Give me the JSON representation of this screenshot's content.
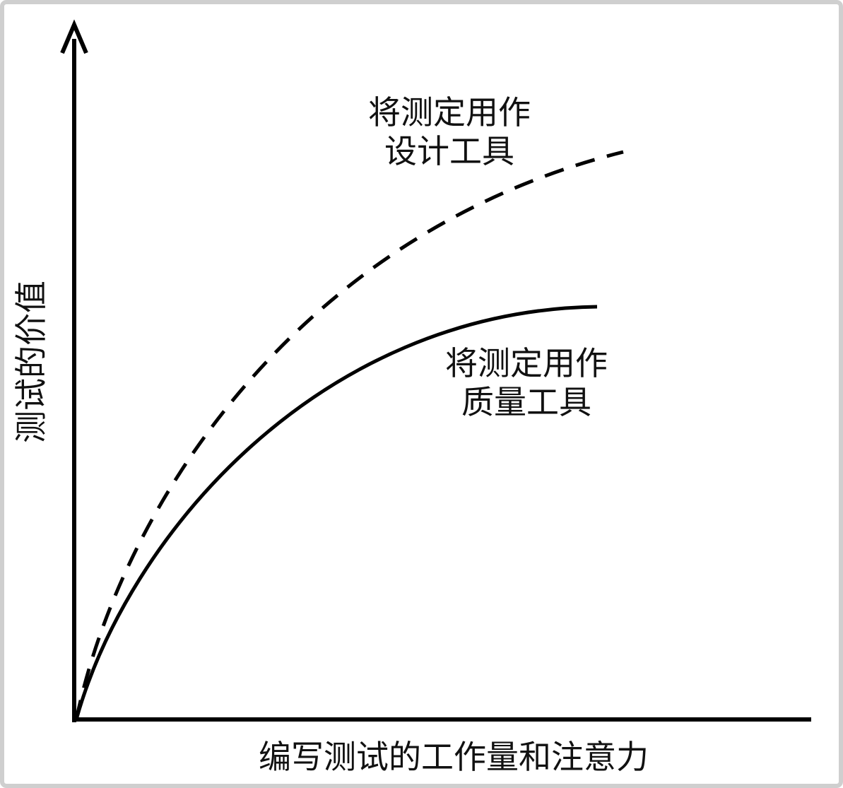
{
  "y_axis_label": "测试的价值",
  "x_axis_label": "编写测试的工作量和注意力",
  "annotations": [
    {
      "lines": [
        "将测定用作",
        "设计工具"
      ]
    },
    {
      "lines": [
        "将测定用作",
        "质量工具"
      ]
    }
  ]
}
